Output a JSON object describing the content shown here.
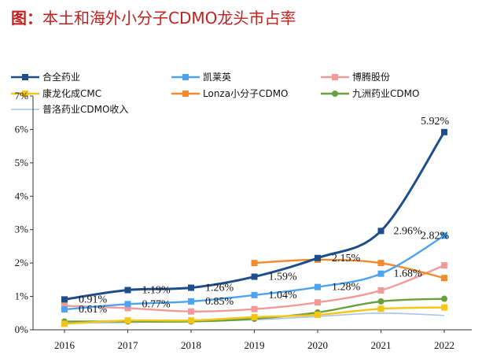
{
  "header": {
    "prefix": "图：",
    "text": "本土和海外小分子CDMO龙头市占率"
  },
  "colors": {
    "title": "#c0211f",
    "axis": "#333333",
    "s0": "#1f4e8c",
    "s1": "#4ea3f0",
    "s2": "#f29a9a",
    "s3": "#f5c518",
    "s4": "#f28a2e",
    "s5": "#6a9e3f",
    "s6": "#a9c4e6"
  },
  "chart_data": {
    "type": "line",
    "title": "本土和海外小分子CDMO龙头市占率",
    "xlabel": "",
    "ylabel": "",
    "categories": [
      "2016",
      "2017",
      "2018",
      "2019",
      "2020",
      "2021",
      "2022"
    ],
    "ylim": [
      0,
      7
    ],
    "yticks": [
      "0%",
      "1%",
      "2%",
      "3%",
      "4%",
      "5%",
      "6%",
      "7%"
    ],
    "legend_position": "top",
    "series": [
      {
        "name": "合全药业",
        "marker": "square",
        "values": [
          0.91,
          1.19,
          1.26,
          1.59,
          2.15,
          2.96,
          5.92
        ],
        "labels": [
          "0.91%",
          "1.19%",
          "1.26%",
          "1.59%",
          "2.15%",
          "2.96%",
          "5.92%"
        ]
      },
      {
        "name": "凯莱英",
        "marker": "square",
        "values": [
          0.61,
          0.77,
          0.85,
          1.04,
          1.28,
          1.68,
          2.82
        ],
        "labels": [
          "0.61%",
          "0.77%",
          "0.85%",
          "1.04%",
          "1.28%",
          "1.68%",
          "2.82%"
        ]
      },
      {
        "name": "博腾股份",
        "marker": "square",
        "values": [
          0.72,
          0.65,
          0.55,
          0.62,
          0.82,
          1.18,
          1.93
        ]
      },
      {
        "name": "康龙化成CMC",
        "marker": "square",
        "values": [
          0.18,
          0.28,
          0.28,
          0.38,
          0.45,
          0.63,
          0.67
        ]
      },
      {
        "name": "Lonza小分子CDMO",
        "marker": "square",
        "values": [
          null,
          null,
          null,
          2.0,
          2.1,
          2.0,
          1.55
        ]
      },
      {
        "name": "九洲药业CDMO",
        "marker": "circle",
        "values": [
          0.25,
          0.25,
          0.25,
          0.33,
          0.52,
          0.85,
          0.93
        ]
      },
      {
        "name": "普洛药业CDMO收入",
        "marker": "line",
        "values": [
          0.2,
          0.22,
          0.26,
          0.3,
          0.4,
          0.5,
          0.43
        ]
      }
    ]
  }
}
